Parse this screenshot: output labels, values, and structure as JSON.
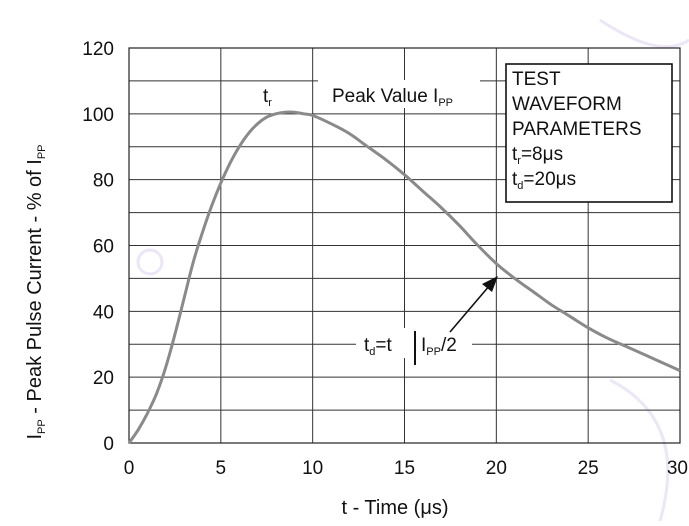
{
  "chart_data": {
    "type": "line",
    "title": "",
    "xlabel": {
      "main": "t - Time (",
      "unit": "μs",
      "close": ")"
    },
    "ylabel": {
      "a": "I",
      "a_sub": "PP",
      "b": " - Peak Pulse Current - % of I",
      "b_sub": "PP"
    },
    "xlim": [
      0,
      30
    ],
    "ylim": [
      0,
      120
    ],
    "x_ticks": [
      0,
      5,
      10,
      15,
      20,
      25,
      30
    ],
    "y_ticks": [
      0,
      20,
      40,
      60,
      80,
      100,
      120
    ],
    "grid": true,
    "series": [
      {
        "x": [
          0,
          0.5,
          1,
          1.5,
          2,
          2.5,
          3,
          3.5,
          4,
          4.5,
          5,
          5.5,
          6,
          6.5,
          7,
          7.5,
          8,
          8.5,
          9,
          9.5,
          10,
          11,
          12,
          13,
          14,
          15,
          16,
          17,
          18,
          19,
          20,
          21,
          22,
          23,
          24,
          25,
          26,
          27,
          28,
          29,
          30
        ],
        "y": [
          0,
          4,
          9,
          15,
          23,
          33,
          44,
          55,
          64,
          72,
          79,
          85,
          90,
          94,
          97,
          99,
          100,
          100.5,
          100.5,
          100,
          99.5,
          97,
          94,
          90,
          86,
          81.5,
          76.5,
          71.5,
          66,
          60,
          54.5,
          50,
          46,
          42,
          38.5,
          35,
          32,
          29.5,
          27,
          24.5,
          22
        ],
        "color": "#8a8a8a"
      }
    ],
    "annotations": {
      "tr": {
        "main": "t",
        "sub": "r"
      },
      "peak": {
        "main": "Peak Value I",
        "sub": "PP"
      },
      "td": {
        "t": "t",
        "t_sub": "d",
        "eq": "=t",
        "half_a": "I",
        "half_sub": "PP",
        "half_b": "/2"
      }
    },
    "params_box": {
      "line1": "TEST",
      "line2": "WAVEFORM",
      "line3": "PARAMETERS",
      "tr": {
        "main": "t",
        "sub": "r",
        "value": "=8",
        "unit": "μs"
      },
      "td": {
        "main": "t",
        "sub": "d",
        "value": "=20",
        "unit": "μs"
      }
    }
  }
}
